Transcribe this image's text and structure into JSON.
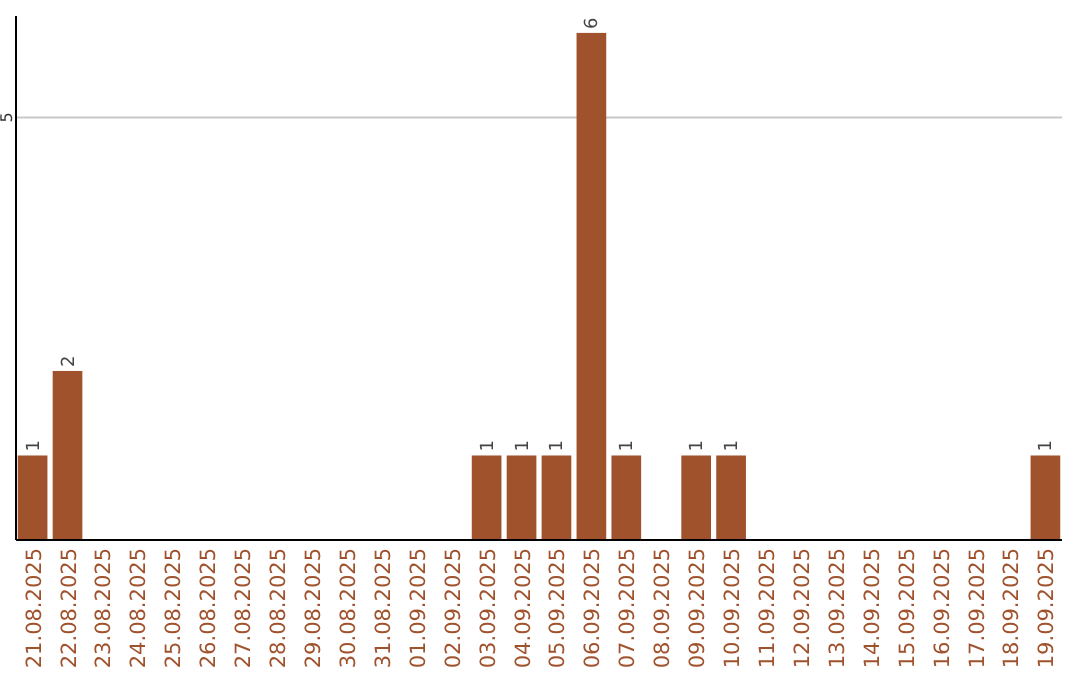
{
  "chart_data": {
    "type": "bar",
    "categories": [
      "21.08.2025",
      "22.08.2025",
      "23.08.2025",
      "24.08.2025",
      "25.08.2025",
      "26.08.2025",
      "27.08.2025",
      "28.08.2025",
      "29.08.2025",
      "30.08.2025",
      "31.08.2025",
      "01.09.2025",
      "02.09.2025",
      "03.09.2025",
      "04.09.2025",
      "05.09.2025",
      "06.09.2025",
      "07.09.2025",
      "08.09.2025",
      "09.09.2025",
      "10.09.2025",
      "11.09.2025",
      "12.09.2025",
      "13.09.2025",
      "14.09.2025",
      "15.09.2025",
      "16.09.2025",
      "17.09.2025",
      "18.09.2025",
      "19.09.2025"
    ],
    "values": [
      1,
      2,
      0,
      0,
      0,
      0,
      0,
      0,
      0,
      0,
      0,
      0,
      0,
      1,
      1,
      1,
      6,
      1,
      0,
      1,
      1,
      0,
      0,
      0,
      0,
      0,
      0,
      0,
      0,
      1
    ],
    "value_labels": [
      "1",
      "2",
      null,
      null,
      null,
      null,
      null,
      null,
      null,
      null,
      null,
      null,
      null,
      "1",
      "1",
      "1",
      "6",
      "1",
      null,
      "1",
      "1",
      null,
      null,
      null,
      null,
      null,
      null,
      null,
      null,
      "1"
    ],
    "color": "#a0522d",
    "ylim": [
      0,
      6.2
    ],
    "yticks": [
      5
    ],
    "grid": "y"
  }
}
